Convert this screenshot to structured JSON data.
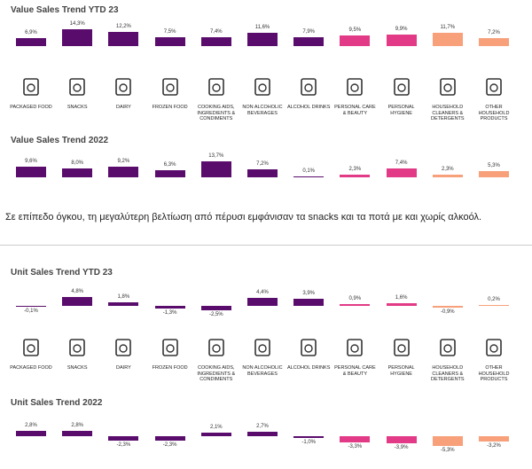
{
  "chart_data": [
    {
      "type": "bar",
      "title": "Value Sales Trend YTD 23",
      "categories": [
        "PACKAGED FOOD",
        "SNACKS",
        "DAIRY",
        "FROZEN FOOD",
        "COOKING AIDS, INGREDIENTS & CONDIMENTS",
        "NON ALCOHOLIC BEVERAGES",
        "ALCOHOL DRINKS",
        "PERSONAL CARE & BEAUTY",
        "PERSONAL HYGIENE",
        "HOUSEHOLD CLEANERS & DETERGENTS",
        "OTHER HOUSEHOLD PRODUCTS"
      ],
      "values": [
        6.9,
        14.3,
        12.2,
        7.5,
        7.4,
        11.6,
        7.9,
        9.5,
        9.9,
        11.7,
        7.2
      ],
      "value_labels": [
        "6,9%",
        "14,3%",
        "12,2%",
        "7,5%",
        "7,4%",
        "11,6%",
        "7,9%",
        "9,5%",
        "9,9%",
        "11,7%",
        "7,2%"
      ],
      "colors": [
        "#5a0c6d",
        "#5a0c6d",
        "#5a0c6d",
        "#5a0c6d",
        "#5a0c6d",
        "#5a0c6d",
        "#5a0c6d",
        "#e23a86",
        "#e23a86",
        "#f7a07a",
        "#f7a07a"
      ]
    },
    {
      "type": "bar",
      "title": "Value Sales Trend 2022",
      "values": [
        9.6,
        8.0,
        9.2,
        6.3,
        13.7,
        7.2,
        0.1,
        2.3,
        7.4,
        2.3,
        5.3
      ],
      "value_labels": [
        "9,6%",
        "8,0%",
        "9,2%",
        "6,3%",
        "13,7%",
        "7,2%",
        "0,1%",
        "2,3%",
        "7,4%",
        "2,3%",
        "5,3%"
      ],
      "colors": [
        "#5a0c6d",
        "#5a0c6d",
        "#5a0c6d",
        "#5a0c6d",
        "#5a0c6d",
        "#5a0c6d",
        "#5a0c6d",
        "#e23a86",
        "#e23a86",
        "#f7a07a",
        "#f7a07a"
      ]
    },
    {
      "type": "bar",
      "title": "Unit Sales Trend YTD 23",
      "categories": [
        "PACKAGED FOOD",
        "SNACKS",
        "DAIRY",
        "FROZEN FOOD",
        "COOKING AIDS, INGREDIENTS & CONDIMENTS",
        "NON ALCOHOLIC BEVERAGES",
        "ALCOHOL DRINKS",
        "PERSONAL CARE & BEAUTY",
        "PERSONAL HYGIENE",
        "HOUSEHOLD CLEANERS & DETERGENTS",
        "OTHER HOUSEHOLD PRODUCTS"
      ],
      "values": [
        -0.1,
        4.8,
        1.8,
        -1.3,
        -2.5,
        4.4,
        3.9,
        0.9,
        1.6,
        -0.9,
        0.2
      ],
      "value_labels": [
        "-0,1%",
        "4,8%",
        "1,8%",
        "-1,3%",
        "-2,5%",
        "4,4%",
        "3,9%",
        "0,9%",
        "1,6%",
        "-0,9%",
        "0,2%"
      ],
      "colors": [
        "#5a0c6d",
        "#5a0c6d",
        "#5a0c6d",
        "#5a0c6d",
        "#5a0c6d",
        "#5a0c6d",
        "#5a0c6d",
        "#e23a86",
        "#e23a86",
        "#f7a07a",
        "#f7a07a"
      ]
    },
    {
      "type": "bar",
      "title": "Unit Sales Trend 2022",
      "values": [
        2.8,
        2.8,
        -2.3,
        -2.3,
        2.1,
        2.7,
        -1.0,
        -3.3,
        -3.9,
        -5.3,
        -3.2
      ],
      "value_labels": [
        "2,8%",
        "2,8%",
        "-2,3%",
        "-2,3%",
        "2,1%",
        "2,7%",
        "-1,0%",
        "-3,3%",
        "-3,9%",
        "-5,3%",
        "-3,2%"
      ],
      "colors": [
        "#5a0c6d",
        "#5a0c6d",
        "#5a0c6d",
        "#5a0c6d",
        "#5a0c6d",
        "#5a0c6d",
        "#5a0c6d",
        "#e23a86",
        "#e23a86",
        "#f7a07a",
        "#f7a07a"
      ]
    }
  ],
  "paragraph": "Σε επίπεδο όγκου, τη μεγαλύτερη βελτίωση από πέρυσι εμφάνισαν τα snacks και τα ποτά με και χωρίς αλκοόλ."
}
